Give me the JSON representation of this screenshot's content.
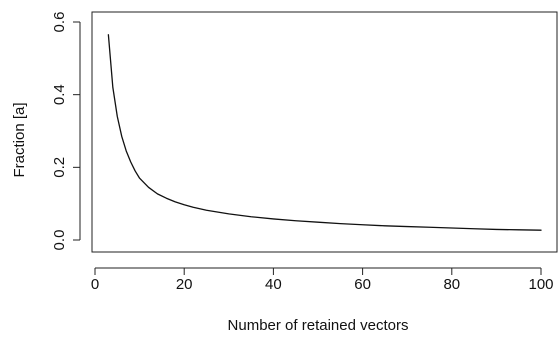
{
  "chart_data": {
    "type": "line",
    "title": "",
    "xlabel": "Number of retained vectors",
    "ylabel": "Fraction [a]",
    "xlim": [
      0,
      100
    ],
    "ylim": [
      0,
      0.6
    ],
    "x_ticks": [
      0,
      20,
      40,
      60,
      80,
      100
    ],
    "y_ticks": [
      0.0,
      0.2,
      0.4,
      0.6
    ],
    "x_tick_labels": [
      "0",
      "20",
      "40",
      "60",
      "80",
      "100"
    ],
    "y_tick_labels": [
      "0.0",
      "0.2",
      "0.4",
      "0.6"
    ],
    "grid": false,
    "legend": "none",
    "line_color": "#111111",
    "series": [
      {
        "x": [
          3,
          4,
          5,
          6,
          7,
          8,
          9,
          10,
          12,
          14,
          16,
          18,
          20,
          22,
          25,
          30,
          35,
          40,
          45,
          50,
          55,
          60,
          65,
          70,
          75,
          80,
          85,
          90,
          95,
          100
        ],
        "values": [
          0.565,
          0.42,
          0.34,
          0.285,
          0.245,
          0.215,
          0.19,
          0.17,
          0.145,
          0.127,
          0.115,
          0.105,
          0.097,
          0.09,
          0.082,
          0.072,
          0.064,
          0.058,
          0.053,
          0.049,
          0.045,
          0.042,
          0.039,
          0.037,
          0.035,
          0.033,
          0.031,
          0.029,
          0.028,
          0.027
        ]
      }
    ]
  }
}
